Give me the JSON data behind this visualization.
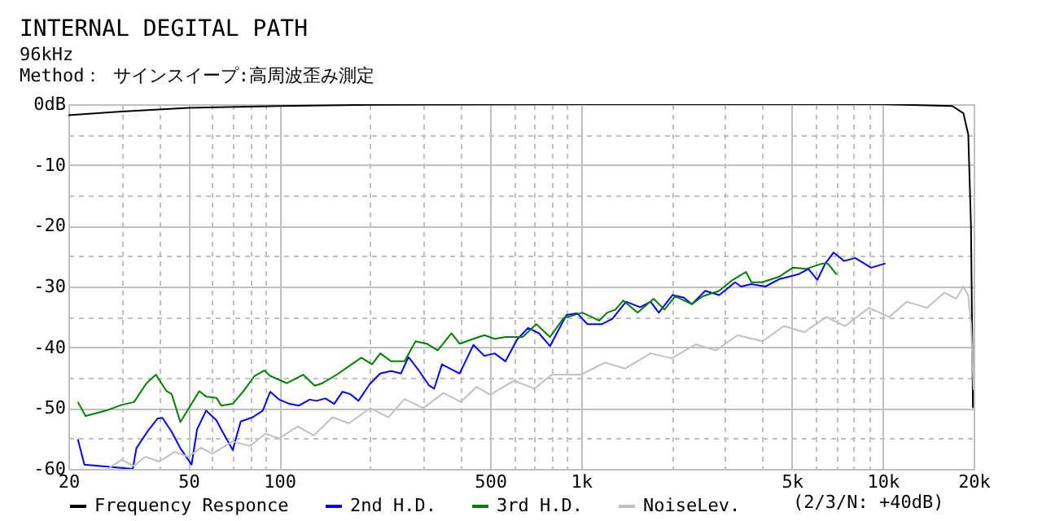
{
  "chart_data": {
    "type": "line",
    "title": "INTERNAL DEGITAL PATH",
    "subtitle": "96kHz\nMethod： サインスイープ:高周波歪み測定",
    "log": "x",
    "grid": true,
    "legend": "bottom",
    "marker": "none",
    "line_style": "solid",
    "xlim": [
      20,
      20000
    ],
    "ylim": [
      -60,
      0
    ],
    "xticks": [
      20,
      {
        "value": 30,
        "label": null
      },
      {
        "value": 40,
        "label": null
      },
      50,
      {
        "value": 60,
        "label": null
      },
      {
        "value": 70,
        "label": null
      },
      {
        "value": 80,
        "label": null
      },
      {
        "value": 90,
        "label": null
      },
      100,
      {
        "value": 200,
        "label": null
      },
      {
        "value": 300,
        "label": null
      },
      {
        "value": 400,
        "label": null
      },
      500,
      {
        "value": 600,
        "label": null
      },
      {
        "value": 700,
        "label": null
      },
      {
        "value": 800,
        "label": null
      },
      {
        "value": 900,
        "label": null
      },
      {
        "value": 1000,
        "label": "1k"
      },
      {
        "value": 2000,
        "label": null
      },
      {
        "value": 3000,
        "label": null
      },
      {
        "value": 4000,
        "label": null
      },
      {
        "value": 5000,
        "label": "5k"
      },
      {
        "value": 6000,
        "label": null
      },
      {
        "value": 7000,
        "label": null
      },
      {
        "value": 8000,
        "label": null
      },
      {
        "value": 9000,
        "label": null
      },
      {
        "value": 10000,
        "label": "10k"
      },
      {
        "value": 20000,
        "label": "20k"
      }
    ],
    "yticks": [
      {
        "value": 0,
        "label": "0dB"
      },
      {
        "value": -5,
        "label": null
      },
      -10,
      {
        "value": -15,
        "label": null
      },
      -20,
      {
        "value": -25,
        "label": null
      },
      -30,
      {
        "value": -35,
        "label": null
      },
      -40,
      {
        "value": -45,
        "label": null
      },
      -50,
      {
        "value": -55,
        "label": null
      },
      -60
    ],
    "annotations": [
      "(2/3/N: +40dB)"
    ],
    "series": [
      {
        "name": "Frequency Responce",
        "color": "#000000",
        "x": [
          20,
          30,
          50,
          100,
          200,
          1000,
          10000,
          17000,
          18500,
          19200,
          19600,
          19900
        ],
        "values": [
          -1.8,
          -1.2,
          -0.6,
          -0.3,
          -0.1,
          0,
          0,
          -0.3,
          -1.5,
          -5,
          -20,
          -50
        ]
      },
      {
        "name": "2nd H.D.",
        "color": "#0000ff",
        "x": [
          21.5,
          22.6,
          32.7,
          33.6,
          36.5,
          39.5,
          41,
          44,
          47,
          51.2,
          53.4,
          57.2,
          61.9,
          64.2,
          70.1,
          74.5,
          81.7,
          88.2,
          93.3,
          100,
          108,
          116,
          126,
          133,
          142,
          152,
          162,
          172,
          183,
          199,
          216,
          235,
          253,
          268,
          288,
          314,
          326,
          346,
          396,
          440,
          478,
          517,
          562,
          614,
          668,
          726,
          789,
          894,
          971,
          1050,
          1170,
          1270,
          1410,
          1570,
          1700,
          1810,
          2010,
          2190,
          2330,
          2580,
          2870,
          3240,
          3390,
          3670,
          4080,
          4530,
          5240,
          5670,
          6070,
          6450,
          6870,
          7450,
          8100,
          9150,
          10200
        ],
        "values": [
          -55.1,
          -59.3,
          -60,
          -56.6,
          -53.9,
          -51.7,
          -51.6,
          -53.9,
          -56.6,
          -59.3,
          -53.5,
          -50.4,
          -52,
          -53.5,
          -56.9,
          -52.2,
          -51.5,
          -50.4,
          -47.3,
          -48.6,
          -49.3,
          -49.6,
          -48.6,
          -48.8,
          -48.4,
          -49.3,
          -47.3,
          -47.7,
          -48.8,
          -46.1,
          -44.3,
          -43.9,
          -44.3,
          -41.6,
          -43.6,
          -46.3,
          -46.8,
          -42.8,
          -44.3,
          -39.6,
          -41.4,
          -41,
          -42.3,
          -38.7,
          -36.8,
          -37.7,
          -39.8,
          -34.7,
          -34.4,
          -36.2,
          -36.2,
          -35.3,
          -32.5,
          -33.4,
          -32.5,
          -34.3,
          -31.4,
          -31.8,
          -32.9,
          -30.7,
          -31.4,
          -29.3,
          -30,
          -29.6,
          -30,
          -28.8,
          -28,
          -27.1,
          -28.9,
          -26.2,
          -24.4,
          -25.8,
          -25.3,
          -26.9,
          -26.2
        ]
      },
      {
        "name": "3rd H.D.",
        "color": "#008000",
        "x": [
          21.5,
          22.8,
          26.7,
          29.9,
          33,
          36.3,
          39,
          42.3,
          44,
          47,
          54.3,
          57.2,
          61.9,
          64.2,
          70.1,
          76.1,
          82.8,
          89.2,
          93.3,
          106,
          120,
          131,
          139,
          155,
          169,
          187,
          203,
          216,
          235,
          260,
          283,
          308,
          335,
          372,
          396,
          440,
          478,
          517,
          562,
          640,
          711,
          789,
          875,
          1010,
          1150,
          1220,
          1300,
          1380,
          1540,
          1740,
          1890,
          2050,
          2330,
          2530,
          2870,
          3180,
          3520,
          3670,
          3980,
          4530,
          5030,
          5570,
          6310,
          6570,
          7030
        ],
        "values": [
          -49,
          -51.3,
          -50.4,
          -49.5,
          -49,
          -45.9,
          -44.5,
          -47.2,
          -47.7,
          -52.3,
          -47.2,
          -48.1,
          -48.3,
          -49.6,
          -49.3,
          -47.2,
          -44.7,
          -43.8,
          -44.7,
          -45.9,
          -44.5,
          -46.3,
          -45.9,
          -44.5,
          -43.2,
          -41.7,
          -42.8,
          -41,
          -42.3,
          -42.3,
          -39,
          -39.4,
          -40.5,
          -37.7,
          -39.4,
          -38.6,
          -38,
          -38.6,
          -38.3,
          -38.3,
          -36.2,
          -38.3,
          -35.2,
          -34.3,
          -35.6,
          -34.3,
          -33.8,
          -32.3,
          -34.3,
          -32,
          -33.8,
          -31.6,
          -32.9,
          -31.6,
          -30.7,
          -28.9,
          -27.6,
          -29.3,
          -29.3,
          -28.4,
          -26.9,
          -27.1,
          -26.2,
          -26.2,
          -28
        ]
      },
      {
        "name": "NoiseLev.",
        "color": "#c0c0c0",
        "x": [
          27,
          30,
          33,
          36,
          40,
          45,
          50,
          55,
          60,
          70,
          80,
          90,
          100,
          115,
          130,
          150,
          170,
          200,
          230,
          260,
          300,
          350,
          400,
          450,
          500,
          600,
          700,
          800,
          1000,
          1200,
          1400,
          1700,
          2000,
          2400,
          2800,
          3300,
          4000,
          4700,
          5500,
          6500,
          7500,
          9000,
          10500,
          12000,
          14000,
          16000,
          17500,
          18500,
          19200,
          19600,
          20000
        ],
        "values": [
          -60,
          -58.5,
          -59.5,
          -58,
          -58.8,
          -57.2,
          -58,
          -56.5,
          -57.5,
          -55.5,
          -56.2,
          -54.2,
          -55,
          -53,
          -54.5,
          -51.5,
          -52.5,
          -50,
          -51.5,
          -48.5,
          -50,
          -47.5,
          -49,
          -46.5,
          -47.8,
          -45.5,
          -46.8,
          -44.5,
          -44.5,
          -42.5,
          -43.5,
          -41,
          -41.8,
          -39.5,
          -40.5,
          -38,
          -39,
          -36.5,
          -37.5,
          -35,
          -36.5,
          -33.5,
          -35,
          -32.5,
          -33.5,
          -31,
          -32,
          -30,
          -31.5,
          -36,
          -47
        ]
      }
    ]
  }
}
